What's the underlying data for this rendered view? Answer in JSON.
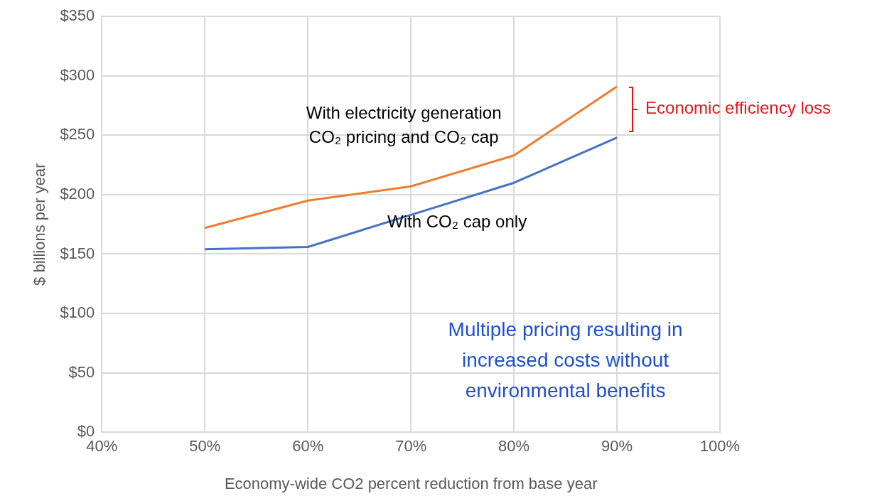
{
  "chart_data": {
    "type": "line",
    "xlabel": "Economy-wide CO2 percent reduction from base year",
    "ylabel": "$ billions per year",
    "x": [
      50,
      60,
      70,
      80,
      90
    ],
    "series": [
      {
        "name": "With electricity generation CO₂ pricing and CO₂ cap",
        "color": "#ed7d31",
        "values": [
          172,
          195,
          207,
          233,
          291
        ]
      },
      {
        "name": "With CO₂ cap only",
        "color": "#4472c4",
        "values": [
          154,
          156,
          183,
          210,
          248
        ]
      }
    ],
    "xlim": [
      40,
      100
    ],
    "xticks": [
      {
        "value": 40,
        "label": "40%"
      },
      {
        "value": 50,
        "label": "50%"
      },
      {
        "value": 60,
        "label": "60%"
      },
      {
        "value": 70,
        "label": "70%"
      },
      {
        "value": 80,
        "label": "80%"
      },
      {
        "value": 90,
        "label": "90%"
      },
      {
        "value": 100,
        "label": "100%"
      }
    ],
    "ylim": [
      0,
      350
    ],
    "yticks": [
      {
        "value": 0,
        "label": "$0"
      },
      {
        "value": 50,
        "label": "$50"
      },
      {
        "value": 100,
        "label": "$100"
      },
      {
        "value": 150,
        "label": "$150"
      },
      {
        "value": 200,
        "label": "$200"
      },
      {
        "value": 250,
        "label": "$250"
      },
      {
        "value": 300,
        "label": "$300"
      },
      {
        "value": 350,
        "label": "$350"
      }
    ],
    "grid": true,
    "legend": false,
    "marker": "none",
    "line_style": "solid",
    "annotations": [
      "Economic efficiency loss",
      "Multiple pricing resulting in increased costs without environmental benefits"
    ]
  }
}
